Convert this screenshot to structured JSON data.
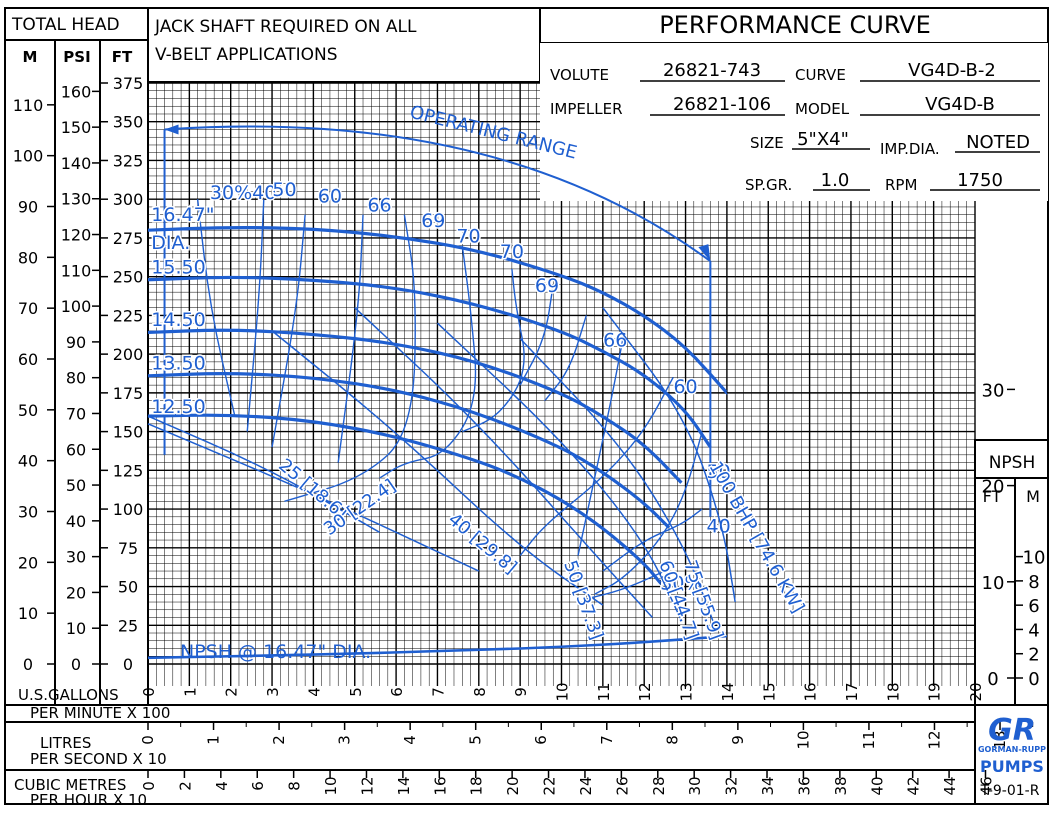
{
  "chart_data": {
    "type": "line",
    "title": "PERFORMANCE CURVE",
    "note": "JACK SHAFT REQUIRED ON ALL V-BELT APPLICATIONS",
    "info": {
      "volute_label": "VOLUTE",
      "volute": "26821-743",
      "curve_label": "CURVE",
      "curve": "VG4D-B-2",
      "impeller_label": "IMPELLER",
      "impeller": "26821-106",
      "model_label": "MODEL",
      "model": "VG4D-B",
      "size_label": "SIZE",
      "size": "5\"X4\"",
      "impdia_label": "IMP.DIA.",
      "impdia": "NOTED",
      "spgr_label": "SP.GR.",
      "spgr": "1.0",
      "rpm_label": "RPM",
      "rpm": "1750"
    },
    "y_axes": {
      "title": "TOTAL HEAD",
      "m": {
        "label": "M",
        "ticks": [
          "110",
          "100",
          "90",
          "80",
          "70",
          "60",
          "50",
          "40",
          "30",
          "20",
          "10",
          "0"
        ]
      },
      "psi": {
        "label": "PSI",
        "ticks": [
          "160",
          "150",
          "140",
          "130",
          "120",
          "110",
          "100",
          "90",
          "80",
          "70",
          "60",
          "50",
          "40",
          "30",
          "20",
          "10",
          "0"
        ]
      },
      "ft": {
        "label": "FT",
        "ticks": [
          "375",
          "350",
          "325",
          "300",
          "275",
          "250",
          "225",
          "200",
          "175",
          "150",
          "125",
          "100",
          "75",
          "50",
          "25",
          "0"
        ]
      },
      "ylim_ft": [
        0,
        375
      ]
    },
    "x_axes": {
      "gpm": {
        "label1": "U.S.GALLONS",
        "label2": "PER MINUTE X 100",
        "ticks": [
          "0",
          "1",
          "2",
          "3",
          "4",
          "5",
          "6",
          "7",
          "8",
          "9",
          "10",
          "11",
          "12",
          "13",
          "14",
          "15",
          "16",
          "17",
          "18",
          "19",
          "20"
        ]
      },
      "lps": {
        "label1": "LITRES",
        "label2": "PER SECOND X 10",
        "ticks": [
          "0",
          "1",
          "2",
          "3",
          "4",
          "5",
          "6",
          "7",
          "8",
          "9",
          "10",
          "11",
          "12",
          "13"
        ]
      },
      "cmh": {
        "label1": "CUBIC METRES",
        "label2": "PER HOUR X 10",
        "ticks": [
          "0",
          "2",
          "4",
          "6",
          "8",
          "10",
          "12",
          "14",
          "16",
          "18",
          "20",
          "22",
          "24",
          "26",
          "28",
          "30",
          "32",
          "34",
          "36",
          "38",
          "40",
          "42",
          "44",
          "46"
        ]
      },
      "xlim_gpm": [
        0,
        2000
      ]
    },
    "npsh_axis": {
      "title": "NPSH",
      "ft_label": "FT",
      "m_label": "M",
      "ft_ticks": [
        "30",
        "20",
        "10",
        "0"
      ],
      "m_ticks": [
        "10",
        "8",
        "6",
        "4",
        "2",
        "0"
      ]
    },
    "series": [
      {
        "name": "16.47\"",
        "x": [
          0,
          200,
          400,
          600,
          800,
          1000,
          1100,
          1200,
          1300,
          1400
        ],
        "y": [
          280,
          282,
          281,
          276,
          267,
          251,
          240,
          225,
          205,
          175
        ]
      },
      {
        "name": "15.50",
        "x": [
          0,
          200,
          400,
          600,
          800,
          1000,
          1100,
          1200,
          1300,
          1360
        ],
        "y": [
          248,
          250,
          248,
          243,
          232,
          215,
          202,
          187,
          164,
          140
        ]
      },
      {
        "name": "14.50",
        "x": [
          0,
          200,
          400,
          600,
          800,
          1000,
          1100,
          1200,
          1290
        ],
        "y": [
          214,
          216,
          213,
          207,
          195,
          175,
          160,
          142,
          117
        ]
      },
      {
        "name": "13.50",
        "x": [
          0,
          200,
          400,
          600,
          800,
          1000,
          1100,
          1200,
          1260
        ],
        "y": [
          186,
          188,
          185,
          177,
          162,
          140,
          124,
          104,
          88
        ]
      },
      {
        "name": "12.50",
        "x": [
          0,
          200,
          400,
          600,
          800,
          900,
          1000,
          1100,
          1200,
          1240
        ],
        "y": [
          160,
          161,
          157,
          147,
          131,
          120,
          106,
          88,
          65,
          52
        ]
      }
    ],
    "efficiency_contours": [
      "30%",
      "40",
      "50",
      "60",
      "66",
      "69",
      "70",
      "70",
      "69",
      "66",
      "60",
      "50",
      "40",
      "30%"
    ],
    "power_lines": [
      "25 [18.6]",
      "30 [22.4]",
      "40 [29.8]",
      "50 [37.3]",
      "60 [44.7]",
      "75 [55.9]",
      "100 BHP [74.6 KW]"
    ],
    "npsh_series": {
      "label": "NPSH @ 16.47\" DIA.",
      "x": [
        0,
        400,
        800,
        1000,
        1200,
        1400
      ],
      "y_ft": [
        4,
        6,
        9,
        11,
        14,
        18
      ]
    },
    "annotations": [
      "OPERATING RANGE"
    ],
    "size_labels": [
      "16.47\"",
      "DIA.",
      "15.50",
      "14.50",
      "13.50",
      "12.50"
    ],
    "logo": "GR GORMAN-RUPP PUMPS",
    "doc_code": "T-9-01-R",
    "colors": {
      "curves": "#1f5fd0",
      "grid": "#000000"
    }
  }
}
